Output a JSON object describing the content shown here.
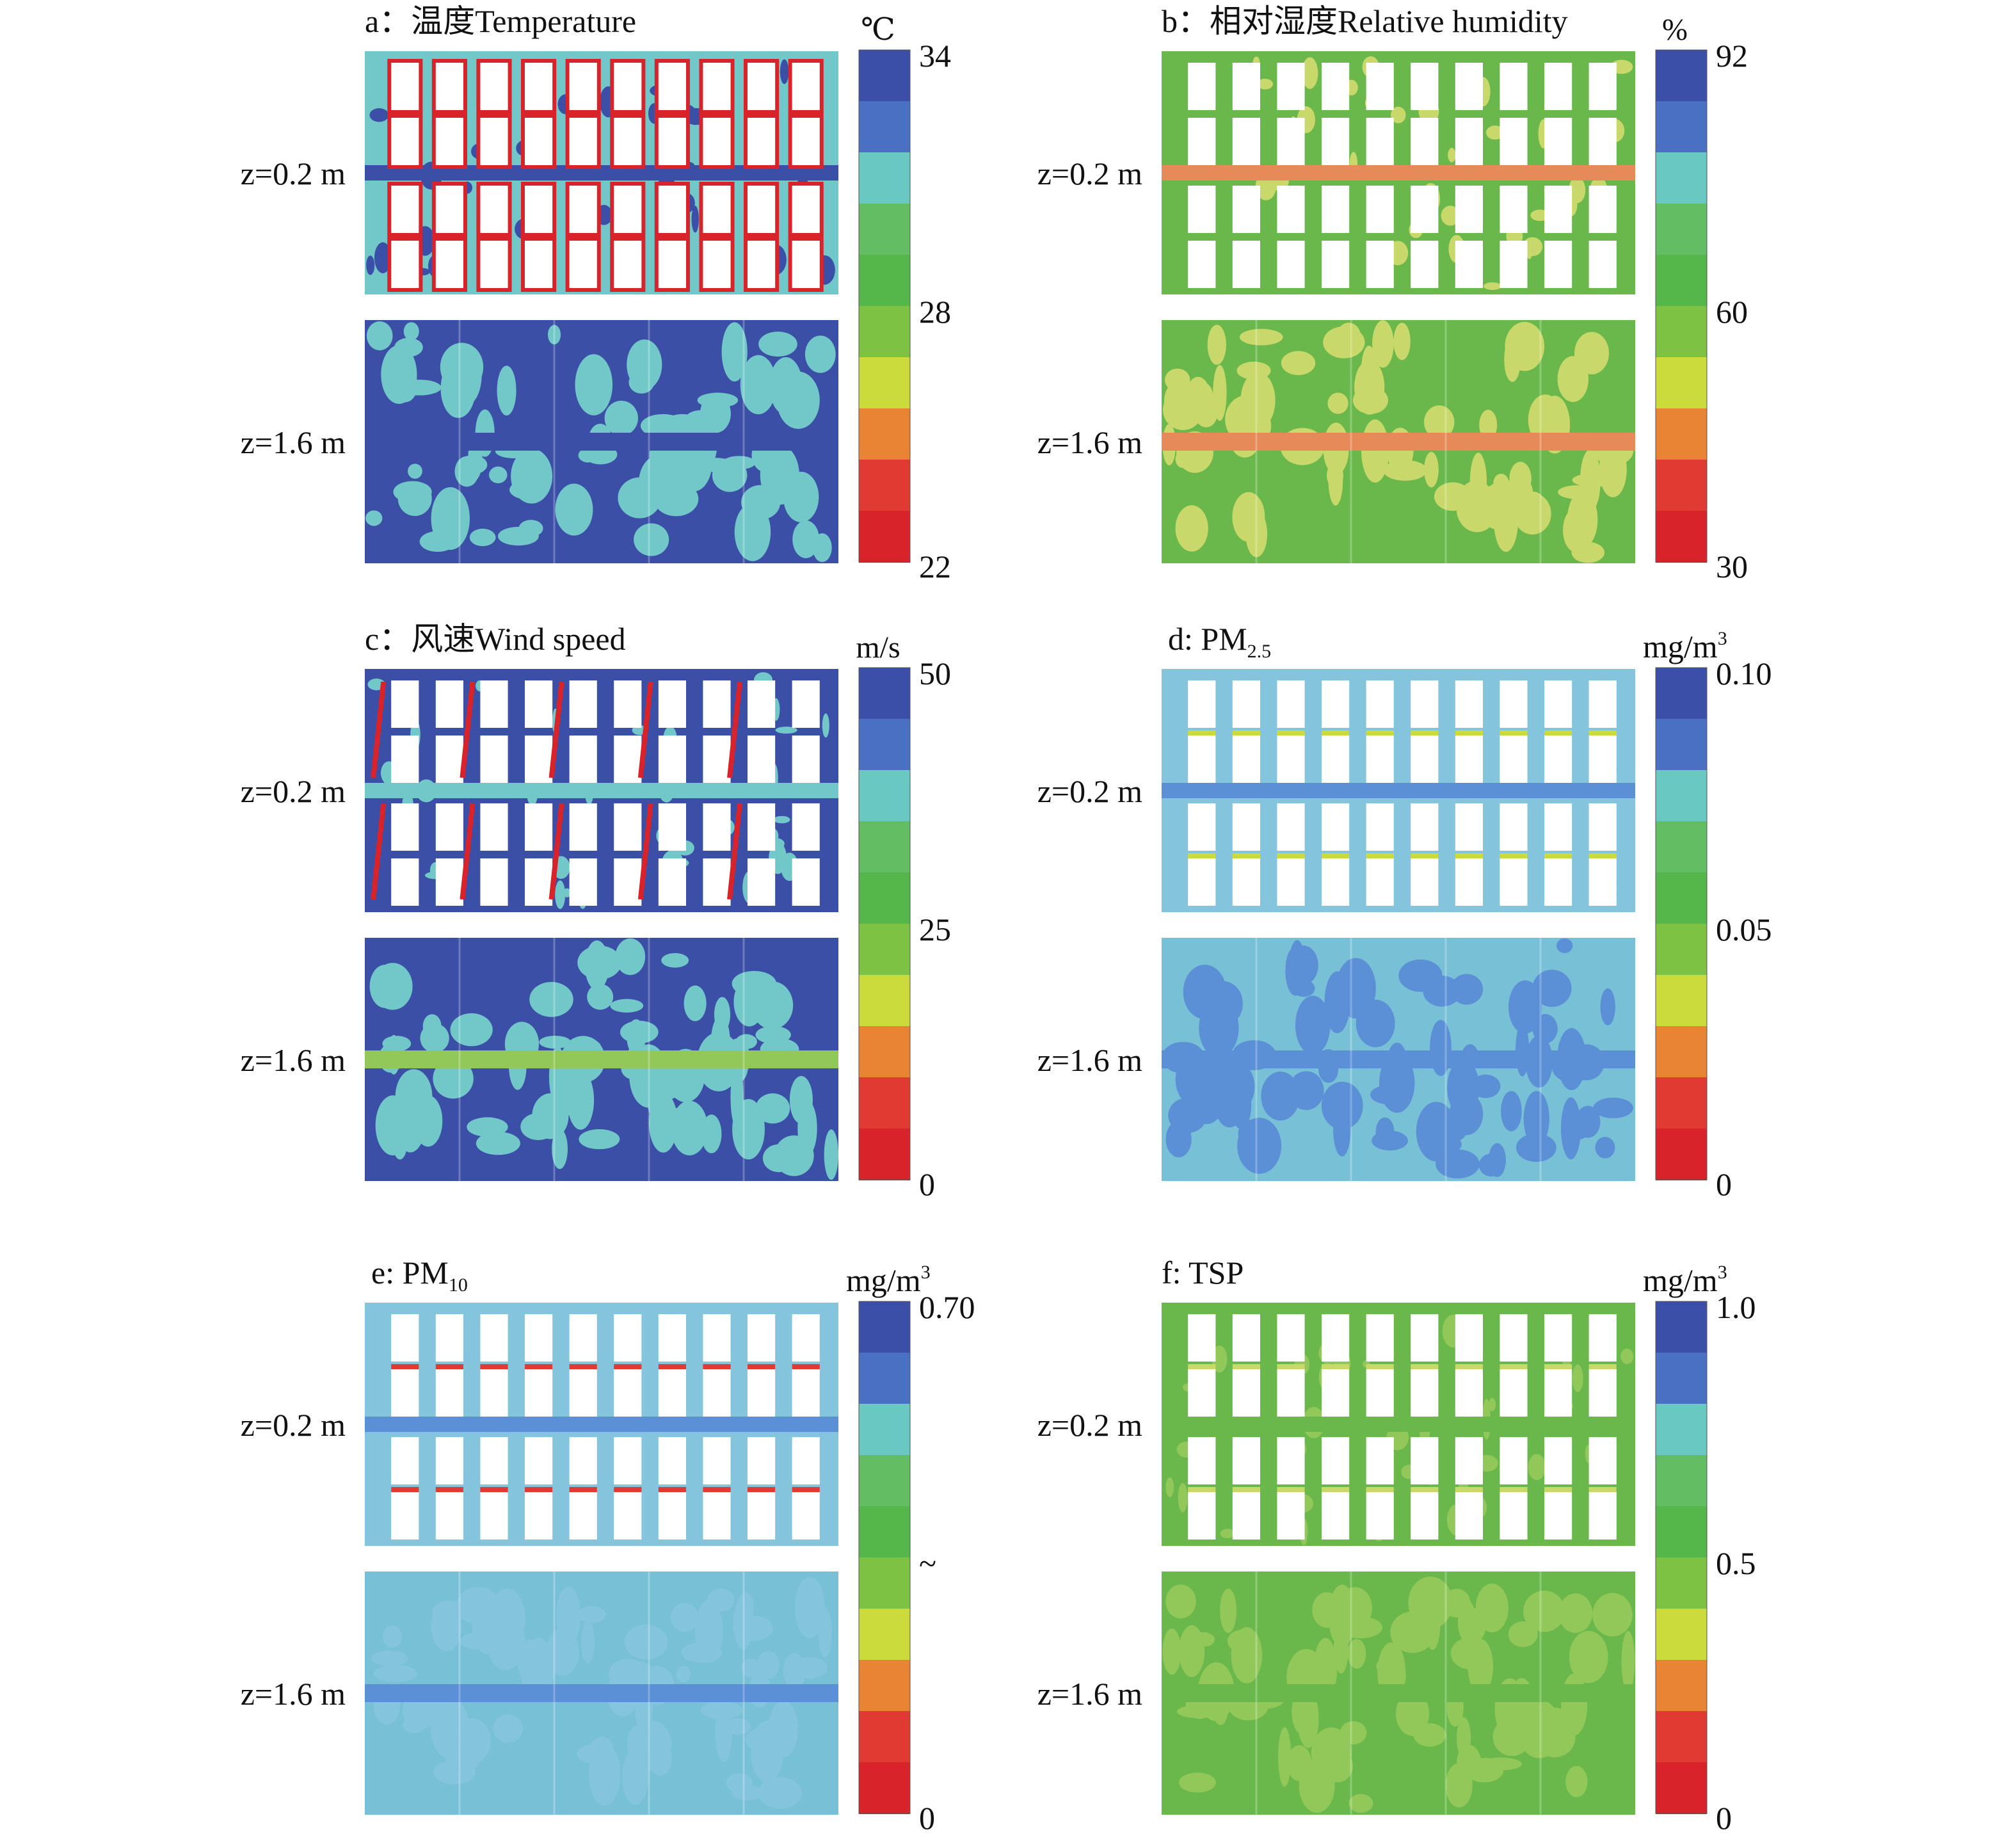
{
  "figure": {
    "colors": {
      "scale": [
        "#d9232a",
        "#e03a32",
        "#e98434",
        "#ccdb3c",
        "#7dc243",
        "#55b649",
        "#63bd63",
        "#69c8c1",
        "#4a70c3",
        "#3c4fa8"
      ],
      "map_blue": "#3b4fa6",
      "map_cyan": "#72c8c9",
      "map_green": "#6ab84c",
      "map_lightgreen": "#92c85a",
      "map_pale": "#c8d86a",
      "map_orange": "#e68a5a",
      "map_lightblue": "#84c4dd",
      "map_pm_blue": "#5b8fd6",
      "map_pm_cyan": "#78c0d6"
    },
    "level_labels": {
      "upper": "z=0.2 m",
      "lower": "z=1.6 m"
    },
    "panels": [
      {
        "id": "a",
        "title": "a：温度Temperature",
        "unit": "℃",
        "colorbar_ticks": [
          "34",
          "28",
          "22"
        ],
        "chart_data": {
          "type": "heatmap",
          "title": "a：温度Temperature",
          "variable": "Temperature",
          "unit": "℃",
          "range": [
            22,
            34
          ],
          "colorbar_ticks": [
            34,
            28,
            22
          ],
          "levels": [
            "z=0.2 m",
            "z=1.6 m"
          ],
          "colormap": "blue(high) to red(low), 10 bands"
        }
      },
      {
        "id": "b",
        "title": "b：相对湿度Relative humidity",
        "unit": "%",
        "colorbar_ticks": [
          "92",
          "60",
          "30"
        ],
        "chart_data": {
          "type": "heatmap",
          "title": "b：相对湿度Relative humidity",
          "variable": "Relative humidity",
          "unit": "%",
          "range": [
            30,
            92
          ],
          "colorbar_ticks": [
            92,
            60,
            30
          ],
          "levels": [
            "z=0.2 m",
            "z=1.6 m"
          ],
          "colormap": "blue(high) to red(low), 10 bands"
        }
      },
      {
        "id": "c",
        "title": "c：风速Wind speed",
        "unit": "m/s",
        "colorbar_ticks": [
          "50",
          "25",
          "0"
        ],
        "chart_data": {
          "type": "heatmap",
          "title": "c：风速Wind speed",
          "variable": "Wind speed",
          "unit": "m/s",
          "range": [
            0,
            50
          ],
          "colorbar_ticks": [
            50,
            25,
            0
          ],
          "levels": [
            "z=0.2 m",
            "z=1.6 m"
          ],
          "colormap": "blue(high) to red(low), 10 bands"
        }
      },
      {
        "id": "d",
        "title_main": "d: PM",
        "title_sub": "2.5",
        "unit_main": "mg/m",
        "unit_sup": "3",
        "colorbar_ticks": [
          "0.10",
          "0.05",
          "0"
        ],
        "chart_data": {
          "type": "heatmap",
          "title": "d: PM2.5",
          "variable": "PM2.5",
          "unit": "mg/m3",
          "range": [
            0,
            0.1
          ],
          "colorbar_ticks": [
            0.1,
            0.05,
            0
          ],
          "levels": [
            "z=0.2 m",
            "z=1.6 m"
          ],
          "colormap": "blue(high) to red(low), 10 bands"
        }
      },
      {
        "id": "e",
        "title_main": "e: PM",
        "title_sub": "10",
        "unit_main": "mg/m",
        "unit_sup": "3",
        "colorbar_ticks": [
          "0.70",
          "~",
          "0"
        ],
        "chart_data": {
          "type": "heatmap",
          "title": "e: PM10",
          "variable": "PM10",
          "unit": "mg/m3",
          "range": [
            0,
            0.7
          ],
          "colorbar_ticks": [
            "0.70",
            "~",
            "0"
          ],
          "levels": [
            "z=0.2 m",
            "z=1.6 m"
          ],
          "colormap": "blue(high) to red(low), 10 bands"
        }
      },
      {
        "id": "f",
        "title": "f: TSP",
        "unit_main": "mg/m",
        "unit_sup": "3",
        "colorbar_ticks": [
          "1.0",
          "0.5",
          "0"
        ],
        "chart_data": {
          "type": "heatmap",
          "title": "f: TSP",
          "variable": "TSP",
          "unit": "mg/m3",
          "range": [
            0,
            1.0
          ],
          "colorbar_ticks": [
            1.0,
            0.5,
            0
          ],
          "levels": [
            "z=0.2 m",
            "z=1.6 m"
          ],
          "colormap": "blue(high) to red(low), 10 bands"
        }
      }
    ]
  }
}
